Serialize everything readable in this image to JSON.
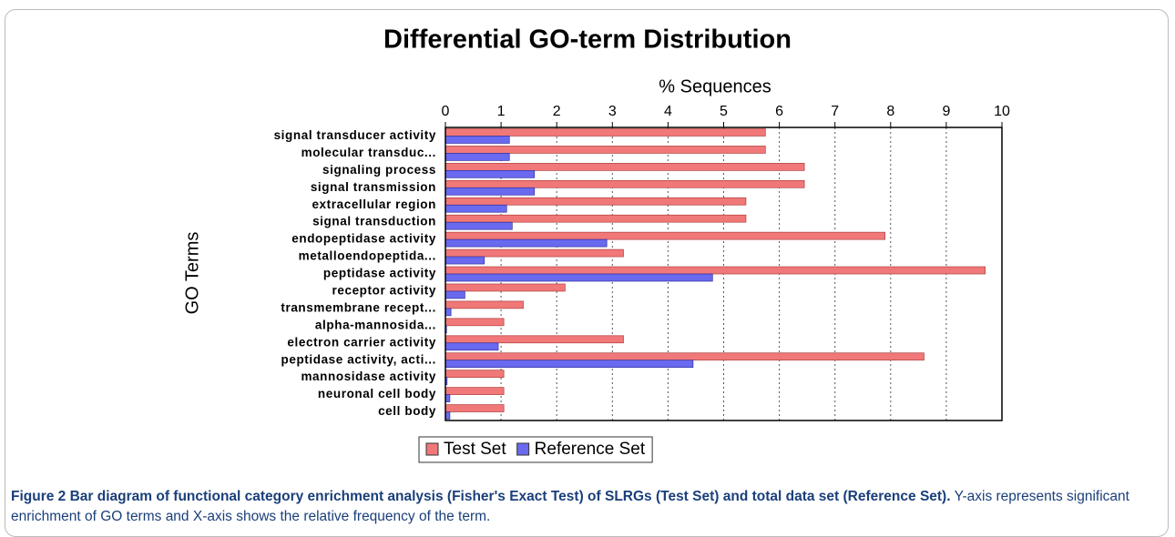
{
  "chart_data": {
    "type": "bar",
    "orientation": "horizontal",
    "title": "Differential GO-term Distribution",
    "xlabel": "% Sequences",
    "ylabel": "GO Terms",
    "categories": [
      "signal transducer activity",
      "molecular transduc...",
      "signaling process",
      "signal transmission",
      "extracellular region",
      "signal transduction",
      "endopeptidase activity",
      "metalloendopeptida...",
      "peptidase activity",
      "receptor activity",
      "transmembrane recept...",
      "alpha-mannosida...",
      "electron carrier activity",
      "peptidase activity, acti...",
      "mannosidase activity",
      "neuronal cell body",
      "cell body"
    ],
    "series": [
      {
        "name": "Test Set",
        "color": "#f07878",
        "values": [
          5.75,
          5.75,
          6.45,
          6.45,
          5.4,
          5.4,
          7.9,
          3.2,
          9.7,
          2.15,
          1.4,
          1.05,
          3.2,
          8.6,
          1.05,
          1.05,
          1.05
        ]
      },
      {
        "name": "Reference Set",
        "color": "#6a6af0",
        "values": [
          1.15,
          1.15,
          1.6,
          1.6,
          1.1,
          1.2,
          2.9,
          0.7,
          4.8,
          0.35,
          0.1,
          0.02,
          0.95,
          4.45,
          0.03,
          0.08,
          0.08
        ]
      }
    ],
    "xlim": [
      0,
      10
    ],
    "xticks": [
      0,
      1,
      2,
      3,
      4,
      5,
      6,
      7,
      8,
      9,
      10
    ],
    "grid": true,
    "legend": "bottom"
  },
  "caption": {
    "title": "Figure 2 Bar diagram of functional category enrichment analysis (Fisher's Exact Test) of SLRGs (Test Set) and total data set (Reference Set).",
    "text": "Y-axis represents significant enrichment of GO terms and X-axis shows the relative frequency of the term."
  }
}
